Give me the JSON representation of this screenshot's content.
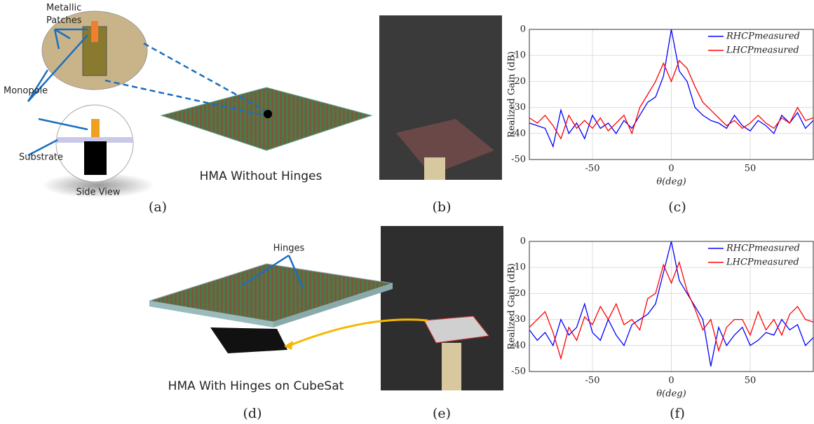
{
  "figure": {
    "captions": [
      "(a)",
      "(b)",
      "(c)",
      "(d)",
      "(e)",
      "(f)"
    ],
    "labels": {
      "patches": "Metallic Patches",
      "monopole": "Monopole",
      "substrate": "Substrate",
      "side_view": "Side View",
      "hma_a": "HMA Without Hinges",
      "hinges": "Hinges",
      "hma_d": "HMA With Hinges on CubeSat"
    }
  },
  "chart_data": [
    {
      "type": "line",
      "ylabel": "Realized Gain (dB)",
      "xlabel": "θ(deg)",
      "grid": true,
      "legend": "upper right",
      "xlim": [
        -90,
        90
      ],
      "xticks": [
        -50,
        0,
        50
      ],
      "ylim": [
        -50,
        0
      ],
      "yticks": [
        -50,
        -40,
        -30,
        -20,
        -10,
        0
      ],
      "x": [
        -90,
        -85,
        -80,
        -75,
        -70,
        -65,
        -60,
        -55,
        -50,
        -45,
        -40,
        -35,
        -30,
        -25,
        -20,
        -15,
        -10,
        -5,
        0,
        5,
        10,
        15,
        20,
        25,
        30,
        35,
        40,
        45,
        50,
        55,
        60,
        65,
        70,
        75,
        80,
        85,
        90
      ],
      "series": [
        {
          "name": "RHCPmeasured",
          "color": "#0000ff",
          "values": [
            -36,
            -37,
            -38,
            -45,
            -31,
            -40,
            -36,
            -42,
            -33,
            -38,
            -36,
            -40,
            -35,
            -38,
            -33,
            -28,
            -26,
            -18,
            0,
            -16,
            -20,
            -30,
            -33,
            -35,
            -36,
            -38,
            -33,
            -37,
            -39,
            -35,
            -37,
            -40,
            -33,
            -36,
            -32,
            -38,
            -35
          ]
        },
        {
          "name": "LHCPmeasured",
          "color": "#ff0000",
          "values": [
            -34,
            -36,
            -33,
            -37,
            -42,
            -33,
            -38,
            -35,
            -38,
            -34,
            -39,
            -36,
            -33,
            -40,
            -30,
            -25,
            -20,
            -13,
            -20,
            -12,
            -15,
            -22,
            -28,
            -31,
            -34,
            -37,
            -35,
            -38,
            -36,
            -33,
            -36,
            -38,
            -34,
            -36,
            -30,
            -35,
            -34
          ]
        }
      ]
    },
    {
      "type": "line",
      "ylabel": "Realized Gain (dB)",
      "xlabel": "θ(deg)",
      "grid": true,
      "legend": "upper right",
      "xlim": [
        -90,
        90
      ],
      "xticks": [
        -50,
        0,
        50
      ],
      "ylim": [
        -50,
        0
      ],
      "yticks": [
        -50,
        -40,
        -30,
        -20,
        -10,
        0
      ],
      "x": [
        -90,
        -85,
        -80,
        -75,
        -70,
        -65,
        -60,
        -55,
        -50,
        -45,
        -40,
        -35,
        -30,
        -25,
        -20,
        -15,
        -10,
        -5,
        0,
        5,
        10,
        15,
        20,
        25,
        30,
        35,
        40,
        45,
        50,
        55,
        60,
        65,
        70,
        75,
        80,
        85,
        90
      ],
      "series": [
        {
          "name": "RHCPmeasured",
          "color": "#0000ff",
          "values": [
            -34,
            -38,
            -35,
            -40,
            -30,
            -36,
            -33,
            -24,
            -35,
            -38,
            -30,
            -36,
            -40,
            -32,
            -30,
            -28,
            -24,
            -12,
            0,
            -15,
            -20,
            -25,
            -30,
            -48,
            -33,
            -40,
            -36,
            -33,
            -40,
            -38,
            -35,
            -36,
            -30,
            -34,
            -32,
            -40,
            -37
          ]
        },
        {
          "name": "LHCPmeasured",
          "color": "#ff0000",
          "values": [
            -33,
            -30,
            -27,
            -35,
            -45,
            -33,
            -38,
            -29,
            -32,
            -25,
            -30,
            -24,
            -32,
            -30,
            -34,
            -22,
            -20,
            -9,
            -16,
            -8,
            -19,
            -26,
            -34,
            -30,
            -42,
            -33,
            -30,
            -30,
            -36,
            -27,
            -34,
            -30,
            -36,
            -28,
            -25,
            -30,
            -31
          ]
        }
      ]
    }
  ]
}
